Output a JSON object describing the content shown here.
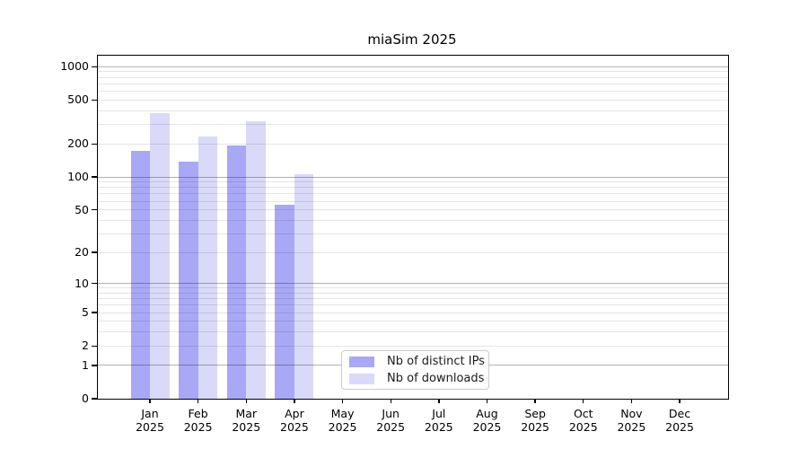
{
  "title": "miaSim 2025",
  "colors": {
    "bar_distinct_ips": "#a8a8f6",
    "bar_downloads": "#d9d9f9",
    "grid_major": "rgba(0,0,0,0.30)",
    "grid_minor": "rgba(0,0,0,0.10)",
    "axis": "#000000",
    "legend_border": "#cccccc"
  },
  "chart_data": {
    "type": "bar",
    "title": "miaSim 2025",
    "categories": [
      "Jan",
      "Feb",
      "Mar",
      "Apr",
      "May",
      "Jun",
      "Jul",
      "Aug",
      "Sep",
      "Oct",
      "Nov",
      "Dec"
    ],
    "year_label": "2025",
    "series": [
      {
        "key": "distinct-ips",
        "name": "Nb of distinct IPs",
        "color": "#a8a8f6",
        "values": [
          172,
          138,
          194,
          56,
          0,
          0,
          0,
          0,
          0,
          0,
          0,
          0
        ]
      },
      {
        "key": "downloads",
        "name": "Nb of downloads",
        "color": "#d9d9f9",
        "values": [
          380,
          233,
          320,
          105,
          0,
          0,
          0,
          0,
          0,
          0,
          0,
          0
        ]
      }
    ],
    "yscale": "log1p",
    "y_ticks": [
      0,
      1,
      2,
      5,
      10,
      20,
      50,
      100,
      200,
      500,
      1000
    ],
    "y_decade_ticks": [
      1,
      10,
      100,
      1000
    ],
    "y_minor_gridlines": [
      3,
      4,
      6,
      7,
      8,
      9,
      30,
      40,
      60,
      70,
      80,
      90,
      300,
      400,
      600,
      700,
      800,
      900
    ],
    "ylim": [
      0,
      1260
    ],
    "grid": "both",
    "legend_position": "lower center"
  }
}
